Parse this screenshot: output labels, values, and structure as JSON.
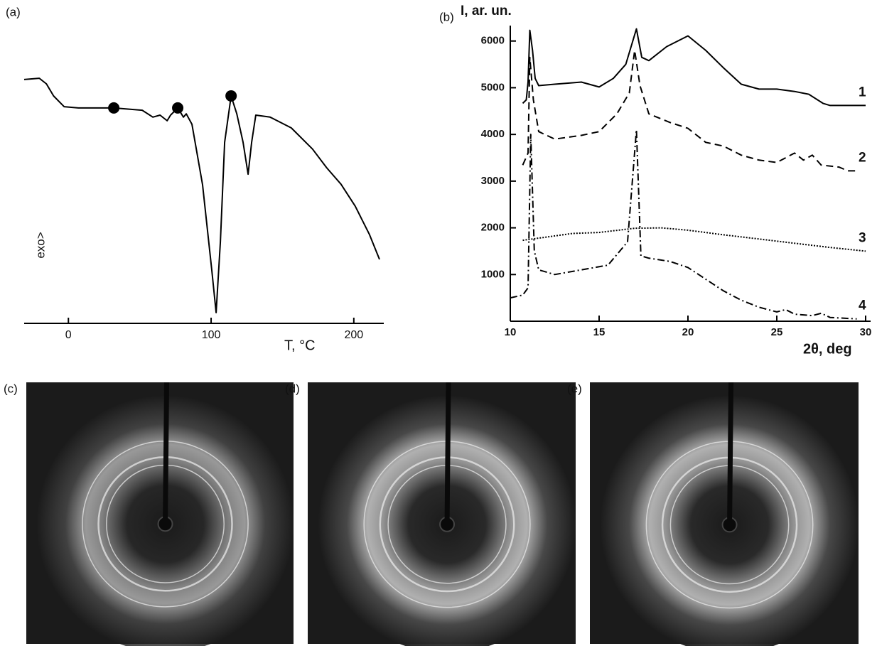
{
  "chart_data": [
    {
      "type": "line",
      "panel": "(a)",
      "xlabel": "T, °C",
      "ylabel": "exo>",
      "xlim": [
        -31,
        220
      ],
      "ylim": [
        0,
        100
      ],
      "xticks": [
        0,
        100,
        200
      ],
      "series": [
        {
          "color": "#000000",
          "linestyle": "solid",
          "x": [
            -31,
            -20.4,
            -15.4,
            -10.4,
            -3,
            7,
            31.8,
            51.7,
            59.2,
            64.2,
            69.2,
            71.6,
            76.6,
            80.6,
            82.6,
            86.6,
            94,
            100.5,
            103.5,
            106.5,
            109.5,
            114,
            118,
            122.4,
            125.9,
            128.4,
            131.3,
            141.3,
            156.2,
            171.1,
            181,
            191,
            201,
            211,
            218
          ],
          "values": [
            95.3,
            95.8,
            93.6,
            88.9,
            84.7,
            84.2,
            84.2,
            83.3,
            80.6,
            81.4,
            79.2,
            81.4,
            84.2,
            80.6,
            81.9,
            77.8,
            54.2,
            20.8,
            4.2,
            31.9,
            70.8,
            88.9,
            81.9,
            70.8,
            58.3,
            70.8,
            81.4,
            80.6,
            76.4,
            68.1,
            60.8,
            54.4,
            45.8,
            34.7,
            25
          ]
        }
      ],
      "markers": {
        "color": "#000000",
        "x": [
          31.8,
          76.6,
          114
        ],
        "values": [
          84.2,
          84.2,
          88.9
        ]
      }
    },
    {
      "type": "line",
      "panel": "(b)",
      "xlabel": "2θ, deg",
      "ylabel": "I, ar. un.",
      "xlim": [
        10,
        30
      ],
      "ylim": [
        0,
        6300
      ],
      "xticks": [
        10,
        15,
        20,
        25,
        30
      ],
      "yticks": [
        1000,
        2000,
        3000,
        4000,
        5000,
        6000
      ],
      "series": [
        {
          "name": "1",
          "color": "#000000",
          "linestyle": "solid",
          "x": [
            10.7,
            10.9,
            11.0,
            11.1,
            11.25,
            11.4,
            11.6,
            12.5,
            14,
            15,
            15.8,
            16.5,
            17.1,
            17.4,
            17.8,
            18.8,
            20,
            21,
            22,
            23,
            24,
            25,
            26,
            26.8,
            27.6,
            28,
            29,
            30
          ],
          "values": [
            4666,
            4740,
            5120,
            6230,
            5800,
            5200,
            5045,
            5075,
            5120,
            5015,
            5200,
            5500,
            6260,
            5650,
            5580,
            5880,
            6110,
            5800,
            5425,
            5075,
            4970,
            4970,
            4920,
            4860,
            4665,
            4620,
            4620,
            4620
          ]
        },
        {
          "name": "2",
          "color": "#000000",
          "linestyle": "dashed",
          "x": [
            10.7,
            11.0,
            11.1,
            11.3,
            11.6,
            12.5,
            14,
            15,
            16,
            16.7,
            17.0,
            17.3,
            17.8,
            19,
            20,
            21,
            22,
            23,
            24,
            25,
            26,
            26.5,
            27,
            27.5,
            28.5,
            29,
            29.5
          ],
          "values": [
            3343,
            3600,
            5650,
            4740,
            4060,
            3900,
            3980,
            4060,
            4440,
            4890,
            5800,
            5045,
            4440,
            4255,
            4130,
            3830,
            3750,
            3556,
            3450,
            3400,
            3600,
            3450,
            3556,
            3343,
            3300,
            3220,
            3220
          ]
        },
        {
          "name": "3",
          "color": "#000000",
          "linestyle": "dotted",
          "x": [
            10.7,
            12,
            13.5,
            15,
            17,
            18.5,
            20,
            22,
            24,
            26,
            28,
            30
          ],
          "values": [
            1733,
            1800,
            1880,
            1900,
            1990,
            2000,
            1950,
            1850,
            1760,
            1670,
            1580,
            1500
          ]
        },
        {
          "name": "4",
          "color": "#000000",
          "linestyle": "dashdot",
          "x": [
            10,
            10.7,
            11.0,
            11.15,
            11.35,
            11.6,
            12.5,
            14,
            15.5,
            16.6,
            17.1,
            17.35,
            17.8,
            19,
            20,
            21,
            22,
            23,
            24,
            25,
            25.5,
            26,
            27,
            27.5,
            28,
            29.5
          ],
          "values": [
            500,
            560,
            715,
            4000,
            1505,
            1100,
            1000,
            1100,
            1200,
            1700,
            4100,
            1400,
            1350,
            1280,
            1150,
            900,
            650,
            450,
            300,
            200,
            250,
            150,
            120,
            170,
            80,
            50
          ]
        }
      ]
    }
  ],
  "panel_labels": [
    "(c)",
    "(d)",
    "(e)"
  ]
}
